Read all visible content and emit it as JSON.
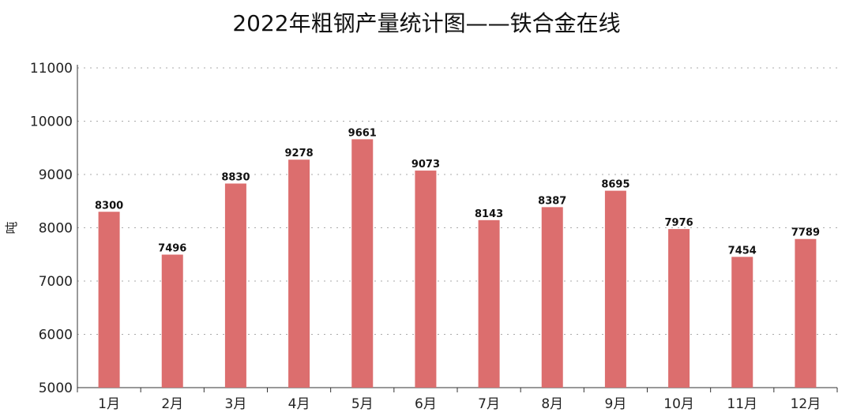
{
  "chart_data": {
    "type": "bar",
    "title": "2022年粗钢产量统计图——铁合金在线",
    "ylabel": "吨",
    "xlabel": "",
    "categories": [
      "1月",
      "2月",
      "3月",
      "4月",
      "5月",
      "6月",
      "7月",
      "8月",
      "9月",
      "10月",
      "11月",
      "12月"
    ],
    "values": [
      8300,
      7496,
      8830,
      9278,
      9661,
      9073,
      8143,
      8387,
      8695,
      7976,
      7454,
      7789
    ],
    "ylim": [
      5000,
      11000
    ],
    "yticks": [
      5000,
      6000,
      7000,
      8000,
      9000,
      10000,
      11000
    ],
    "grid": true,
    "colors": {
      "bar": "#dc6e6e",
      "grid": "#aaaaaa",
      "axis": "#333333"
    }
  }
}
